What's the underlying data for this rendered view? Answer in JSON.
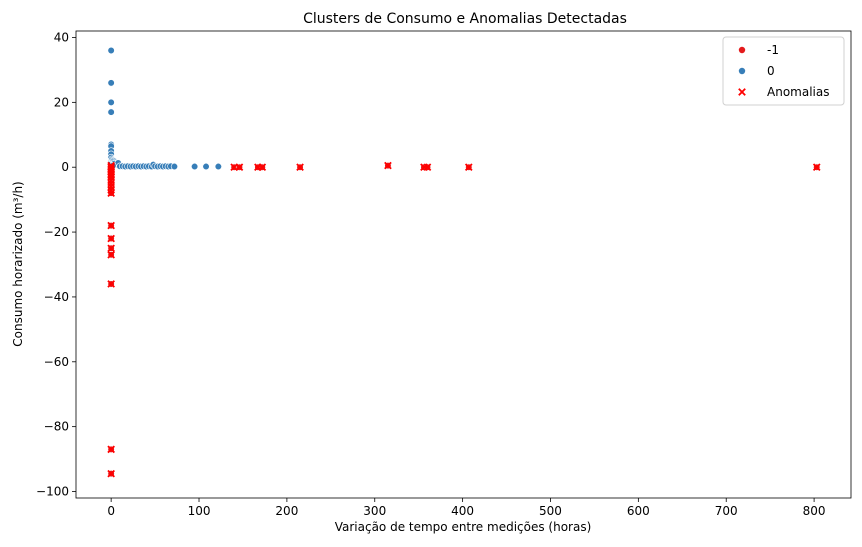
{
  "chart_data": {
    "type": "scatter",
    "title": "Clusters de Consumo e Anomalias Detectadas",
    "xlabel": "Variação de tempo entre medições (horas)",
    "ylabel": "Consumo horarizado (m³/h)",
    "xlim": [
      -40,
      842
    ],
    "ylim": [
      -102,
      42
    ],
    "xticks": [
      0,
      100,
      200,
      300,
      400,
      500,
      600,
      700,
      800
    ],
    "yticks": [
      -100,
      -80,
      -60,
      -40,
      -20,
      0,
      20,
      40
    ],
    "xtick_labels": [
      "0",
      "100",
      "200",
      "300",
      "400",
      "500",
      "600",
      "700",
      "800"
    ],
    "ytick_labels": [
      "−100",
      "−80",
      "−60",
      "−40",
      "−20",
      "0",
      "20",
      "40"
    ],
    "grid": false,
    "legend_position": "top-right",
    "series": [
      {
        "name": "-1",
        "marker": "circle",
        "color": "#e41a1c",
        "points": [
          [
            0,
            0.5
          ],
          [
            0,
            0
          ],
          [
            0,
            -0.5
          ],
          [
            0,
            -1
          ],
          [
            0,
            -1.5
          ],
          [
            0,
            -2
          ],
          [
            0,
            -2.5
          ],
          [
            0,
            -3
          ],
          [
            0,
            -4
          ],
          [
            0,
            -5
          ],
          [
            0,
            -6
          ],
          [
            0,
            -7
          ],
          [
            0,
            -8
          ],
          [
            0,
            -18
          ],
          [
            0,
            -22
          ],
          [
            0,
            -25
          ],
          [
            0,
            -27
          ],
          [
            0,
            -36
          ],
          [
            0,
            -87
          ],
          [
            0,
            -94.5
          ],
          [
            140,
            0
          ],
          [
            146,
            0
          ],
          [
            167,
            0
          ],
          [
            172,
            0
          ],
          [
            215,
            0
          ],
          [
            315,
            0.5
          ],
          [
            356,
            0
          ],
          [
            360,
            0
          ],
          [
            407,
            0
          ],
          [
            803,
            0
          ]
        ]
      },
      {
        "name": "0",
        "marker": "circle",
        "color": "#377eb8",
        "points": [
          [
            0,
            36
          ],
          [
            0,
            26
          ],
          [
            0,
            20
          ],
          [
            0,
            17
          ],
          [
            0,
            7
          ],
          [
            0,
            6.5
          ],
          [
            0,
            5
          ],
          [
            0,
            4
          ],
          [
            0,
            3
          ],
          [
            0,
            2
          ],
          [
            0,
            1.5
          ],
          [
            0,
            1
          ],
          [
            1,
            2.5
          ],
          [
            2,
            2.2
          ],
          [
            3,
            2
          ],
          [
            4,
            1.8
          ],
          [
            5,
            1.5
          ],
          [
            6,
            1.2
          ],
          [
            3,
            1
          ],
          [
            7,
            0.8
          ],
          [
            8,
            1.3
          ],
          [
            2,
            0.5
          ],
          [
            10,
            0.3
          ],
          [
            13,
            0.3
          ],
          [
            16,
            0.2
          ],
          [
            19,
            0.3
          ],
          [
            22,
            0.2
          ],
          [
            25,
            0.3
          ],
          [
            28,
            0.2
          ],
          [
            31,
            0.3
          ],
          [
            34,
            0.2
          ],
          [
            37,
            0.3
          ],
          [
            40,
            0.2
          ],
          [
            43,
            0.3
          ],
          [
            46,
            0.2
          ],
          [
            48,
            0.8
          ],
          [
            50,
            0.3
          ],
          [
            53,
            0.2
          ],
          [
            56,
            0.3
          ],
          [
            59,
            0.2
          ],
          [
            62,
            0.3
          ],
          [
            65,
            0.2
          ],
          [
            68,
            0.3
          ],
          [
            72,
            0.2
          ],
          [
            95,
            0.2
          ],
          [
            108,
            0.2
          ],
          [
            122,
            0.2
          ]
        ]
      },
      {
        "name": "Anomalias",
        "marker": "x",
        "color": "#ff0000",
        "points": [
          [
            0,
            0.5
          ],
          [
            0,
            0
          ],
          [
            0,
            -0.5
          ],
          [
            0,
            -1
          ],
          [
            0,
            -1.5
          ],
          [
            0,
            -2
          ],
          [
            0,
            -2.5
          ],
          [
            0,
            -3
          ],
          [
            0,
            -4
          ],
          [
            0,
            -5
          ],
          [
            0,
            -6
          ],
          [
            0,
            -7
          ],
          [
            0,
            -8
          ],
          [
            0,
            -18
          ],
          [
            0,
            -22
          ],
          [
            0,
            -25
          ],
          [
            0,
            -27
          ],
          [
            0,
            -36
          ],
          [
            0,
            -87
          ],
          [
            0,
            -94.5
          ],
          [
            140,
            0
          ],
          [
            146,
            0
          ],
          [
            167,
            0
          ],
          [
            172,
            0
          ],
          [
            215,
            0
          ],
          [
            315,
            0.5
          ],
          [
            356,
            0
          ],
          [
            360,
            0
          ],
          [
            407,
            0
          ],
          [
            803,
            0
          ]
        ]
      }
    ]
  }
}
